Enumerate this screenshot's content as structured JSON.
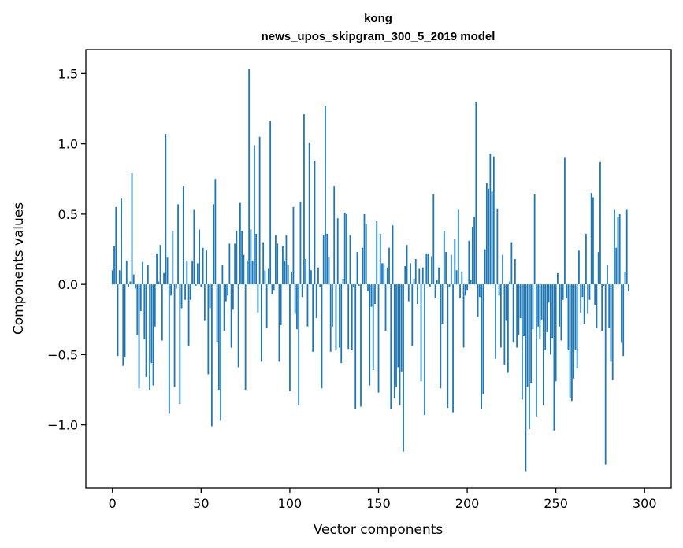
{
  "chart_data": {
    "type": "bar",
    "title_line1": "kong",
    "title_line2": "news_upos_skipgram_300_5_2019 model",
    "xlabel": "Vector components",
    "ylabel": "Components values",
    "xlim": [
      -15,
      315
    ],
    "ylim": [
      -1.45,
      1.67
    ],
    "xticks": [
      0,
      50,
      100,
      150,
      200,
      250,
      300
    ],
    "xtick_labels": [
      "0",
      "50",
      "100",
      "150",
      "200",
      "250",
      "300"
    ],
    "yticks": [
      -1.0,
      -0.5,
      0.0,
      0.5,
      1.0,
      1.5
    ],
    "ytick_labels": [
      "−1.0",
      "−0.5",
      "0.0",
      "0.5",
      "1.0",
      "1.5"
    ],
    "bar_color": "#1f77b4",
    "values": [
      0.1,
      0.27,
      0.55,
      -0.51,
      0.1,
      0.61,
      -0.58,
      -0.52,
      0.17,
      -0.02,
      0.02,
      0.79,
      0.07,
      -0.03,
      -0.36,
      -0.74,
      -0.19,
      0.16,
      -0.39,
      -0.66,
      0.14,
      -0.75,
      -0.56,
      -0.72,
      -0.3,
      0.22,
      0.02,
      0.28,
      -0.4,
      0.08,
      1.07,
      0.19,
      -0.92,
      -0.08,
      0.38,
      -0.73,
      -0.03,
      0.57,
      -0.85,
      -0.17,
      0.7,
      -0.11,
      0.17,
      -0.44,
      -0.11,
      0.17,
      0.53,
      -0.01,
      0.15,
      0.39,
      -0.02,
      0.26,
      -0.26,
      0.24,
      -0.64,
      -0.17,
      -1.01,
      0.57,
      0.75,
      -0.41,
      -0.75,
      -0.97,
      0.14,
      -0.33,
      -0.12,
      -0.08,
      0.29,
      -0.45,
      -0.18,
      0.29,
      0.38,
      -0.59,
      0.58,
      0.38,
      0.21,
      -0.75,
      0.17,
      1.53,
      0.39,
      0.17,
      0.99,
      0.36,
      -0.2,
      1.05,
      -0.55,
      0.3,
      0.1,
      -0.31,
      0.11,
      1.16,
      -0.07,
      -0.04,
      0.35,
      0.29,
      -0.55,
      -0.29,
      0.27,
      0.17,
      0.35,
      0.14,
      -0.76,
      0.09,
      0.55,
      -0.21,
      -0.32,
      -0.86,
      0.59,
      -0.09,
      1.21,
      0.18,
      -0.3,
      1.01,
      0.1,
      -0.48,
      0.88,
      -0.24,
      0.12,
      -0.02,
      -0.74,
      0.35,
      1.27,
      0.36,
      0.19,
      -0.48,
      -0.3,
      0.7,
      -0.47,
      0.47,
      -0.45,
      -0.56,
      0.04,
      0.51,
      0.5,
      -0.46,
      0.35,
      -0.47,
      -0.02,
      -0.89,
      0.23,
      -0.01,
      -0.87,
      0.26,
      0.5,
      0.43,
      -0.05,
      -0.72,
      -0.16,
      -0.61,
      -0.14,
      0.45,
      -0.77,
      0.36,
      0.15,
      0.15,
      -0.33,
      0.12,
      0.26,
      -0.89,
      0.42,
      -0.81,
      -0.73,
      -0.59,
      -0.86,
      -0.62,
      -1.19,
      0.13,
      0.28,
      -0.12,
      0.15,
      -0.44,
      0.04,
      0.18,
      -0.14,
      0.11,
      -0.69,
      0.12,
      -0.93,
      0.22,
      0.22,
      -0.02,
      0.2,
      0.64,
      -0.1,
      0.03,
      0.12,
      -0.74,
      -0.28,
      0.38,
      0.23,
      -0.88,
      -0.02,
      0.21,
      -0.91,
      0.32,
      0.1,
      0.53,
      -0.1,
      0.09,
      -0.45,
      -0.08,
      -0.04,
      0.31,
      0.03,
      0.41,
      0.48,
      1.3,
      -0.23,
      -0.09,
      -0.89,
      -0.78,
      0.25,
      0.72,
      0.68,
      0.93,
      0.66,
      0.91,
      -0.53,
      0.54,
      -0.08,
      -0.45,
      0.21,
      -0.57,
      -0.26,
      -0.63,
      0.02,
      0.3,
      -0.41,
      0.18,
      -0.45,
      -0.36,
      -0.24,
      -0.82,
      -0.37,
      -1.33,
      -0.73,
      -1.03,
      -0.7,
      -0.32,
      0.64,
      -0.94,
      -0.3,
      -0.39,
      -0.25,
      -0.86,
      -0.47,
      -0.34,
      -0.13,
      -0.5,
      -0.38,
      -1.04,
      -0.69,
      0.08,
      -0.3,
      -0.4,
      -0.11,
      0.9,
      -0.1,
      -0.47,
      -0.81,
      -0.83,
      -0.67,
      -0.47,
      -0.6,
      0.24,
      -0.2,
      -0.09,
      -0.28,
      0.36,
      -0.21,
      -0.11,
      0.65,
      0.62,
      -0.15,
      -0.31,
      0.23,
      0.87,
      -0.33,
      -0.01,
      -1.28,
      0.14,
      -0.31,
      -0.55,
      -0.68,
      0.53,
      0.26,
      0.48,
      0.5,
      -0.41,
      -0.51,
      0.09,
      0.53,
      -0.05
    ]
  }
}
